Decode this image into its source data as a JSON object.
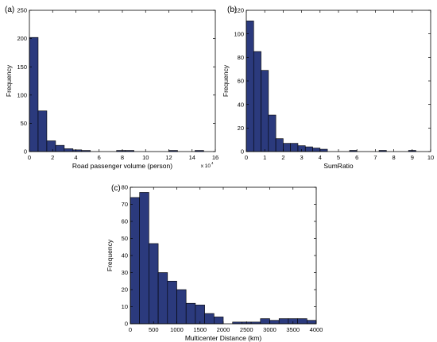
{
  "figure": {
    "bar_color": "#2b3a7d",
    "edge_color": "#000000"
  },
  "chart_data": [
    {
      "panel_label": "(a)",
      "type": "bar",
      "xlabel": "Road passenger volume (person)",
      "ylabel": "Frequency",
      "x_multiplier": "x 10",
      "x_multiplier_exp": "4",
      "xlim": [
        0,
        16
      ],
      "ylim": [
        0,
        250
      ],
      "xticks": [
        "0",
        "2",
        "4",
        "6",
        "8",
        "10",
        "12",
        "14",
        "16"
      ],
      "yticks": [
        "0",
        "50",
        "100",
        "150",
        "200",
        "250"
      ],
      "bins": [
        {
          "x0": 0.0,
          "x1": 0.75,
          "count": 202
        },
        {
          "x0": 0.75,
          "x1": 1.5,
          "count": 72
        },
        {
          "x0": 1.5,
          "x1": 2.25,
          "count": 19
        },
        {
          "x0": 2.25,
          "x1": 3.0,
          "count": 11
        },
        {
          "x0": 3.0,
          "x1": 3.75,
          "count": 5
        },
        {
          "x0": 3.75,
          "x1": 4.5,
          "count": 3
        },
        {
          "x0": 4.5,
          "x1": 5.25,
          "count": 2
        },
        {
          "x0": 7.5,
          "x1": 8.25,
          "count": 2
        },
        {
          "x0": 8.25,
          "x1": 9.0,
          "count": 2
        },
        {
          "x0": 12.0,
          "x1": 12.75,
          "count": 2
        },
        {
          "x0": 14.25,
          "x1": 15.0,
          "count": 2
        }
      ]
    },
    {
      "panel_label": "(b)",
      "type": "bar",
      "xlabel": "SumRatio",
      "ylabel": "Frequency",
      "xlim": [
        0,
        10
      ],
      "ylim": [
        0,
        120
      ],
      "xticks": [
        "0",
        "1",
        "2",
        "3",
        "4",
        "5",
        "6",
        "7",
        "8",
        "9",
        "10"
      ],
      "yticks": [
        "0",
        "20",
        "40",
        "60",
        "80",
        "100",
        "120"
      ],
      "bins": [
        {
          "x0": 0.0,
          "x1": 0.4,
          "count": 111
        },
        {
          "x0": 0.4,
          "x1": 0.8,
          "count": 85
        },
        {
          "x0": 0.8,
          "x1": 1.2,
          "count": 69
        },
        {
          "x0": 1.2,
          "x1": 1.6,
          "count": 31
        },
        {
          "x0": 1.6,
          "x1": 2.0,
          "count": 11
        },
        {
          "x0": 2.0,
          "x1": 2.4,
          "count": 7
        },
        {
          "x0": 2.4,
          "x1": 2.8,
          "count": 7
        },
        {
          "x0": 2.8,
          "x1": 3.2,
          "count": 5
        },
        {
          "x0": 3.2,
          "x1": 3.6,
          "count": 4
        },
        {
          "x0": 3.6,
          "x1": 4.0,
          "count": 3
        },
        {
          "x0": 4.0,
          "x1": 4.4,
          "count": 2
        },
        {
          "x0": 5.6,
          "x1": 6.0,
          "count": 1
        },
        {
          "x0": 7.2,
          "x1": 7.6,
          "count": 1
        },
        {
          "x0": 8.8,
          "x1": 9.2,
          "count": 1
        }
      ]
    },
    {
      "panel_label": "(c)",
      "type": "bar",
      "xlabel": "Multicenter Distance (km)",
      "ylabel": "Frequency",
      "xlim": [
        0,
        4000
      ],
      "ylim": [
        0,
        80
      ],
      "xticks": [
        "0",
        "500",
        "1000",
        "1500",
        "2000",
        "2500",
        "3000",
        "3500",
        "4000"
      ],
      "yticks": [
        "0",
        "10",
        "20",
        "30",
        "40",
        "50",
        "60",
        "70",
        "80"
      ],
      "bins": [
        {
          "x0": 0,
          "x1": 200,
          "count": 74
        },
        {
          "x0": 200,
          "x1": 400,
          "count": 77
        },
        {
          "x0": 400,
          "x1": 600,
          "count": 47
        },
        {
          "x0": 600,
          "x1": 800,
          "count": 30
        },
        {
          "x0": 800,
          "x1": 1000,
          "count": 25
        },
        {
          "x0": 1000,
          "x1": 1200,
          "count": 20
        },
        {
          "x0": 1200,
          "x1": 1400,
          "count": 12
        },
        {
          "x0": 1400,
          "x1": 1600,
          "count": 11
        },
        {
          "x0": 1600,
          "x1": 1800,
          "count": 6
        },
        {
          "x0": 1800,
          "x1": 2000,
          "count": 4
        },
        {
          "x0": 2200,
          "x1": 2400,
          "count": 1
        },
        {
          "x0": 2400,
          "x1": 2600,
          "count": 1
        },
        {
          "x0": 2600,
          "x1": 2800,
          "count": 1
        },
        {
          "x0": 2800,
          "x1": 3000,
          "count": 3
        },
        {
          "x0": 3000,
          "x1": 3200,
          "count": 2
        },
        {
          "x0": 3200,
          "x1": 3400,
          "count": 3
        },
        {
          "x0": 3400,
          "x1": 3600,
          "count": 3
        },
        {
          "x0": 3600,
          "x1": 3800,
          "count": 3
        },
        {
          "x0": 3800,
          "x1": 4000,
          "count": 2
        }
      ]
    }
  ]
}
